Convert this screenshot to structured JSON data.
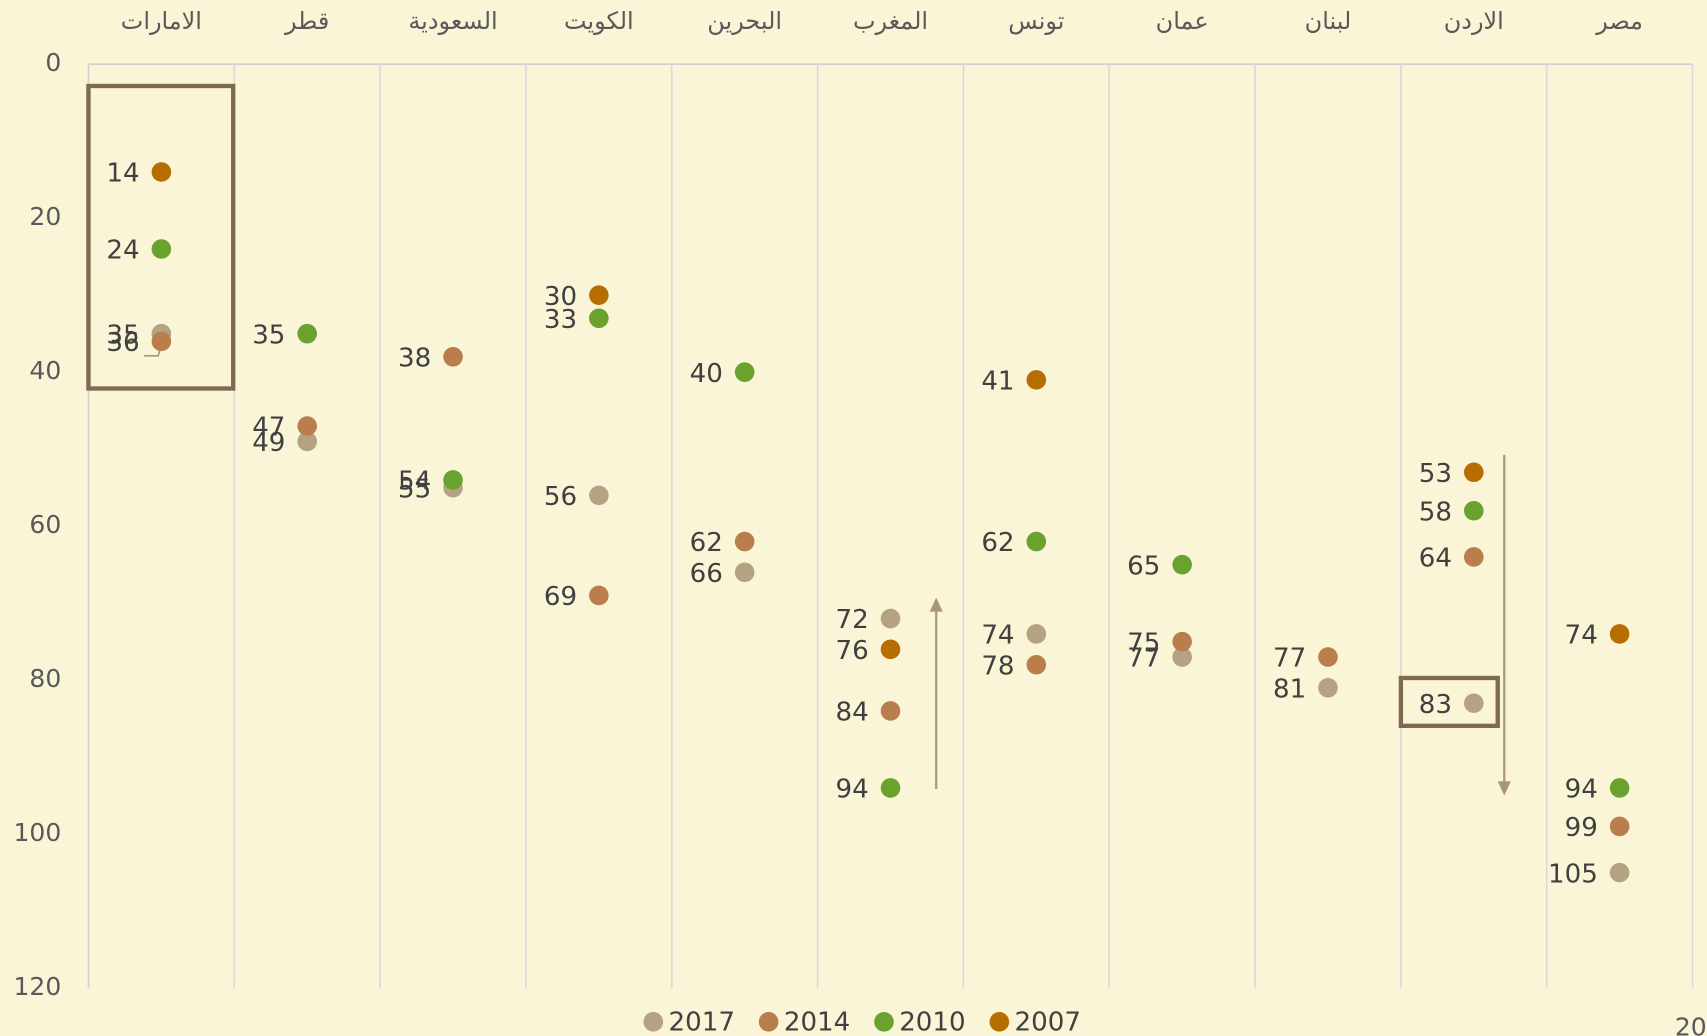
{
  "chart_data": {
    "type": "dot",
    "categories": [
      "الامارات",
      "قطر",
      "السعودية",
      "الكويت",
      "البحرين",
      "المغرب",
      "تونس",
      "عمان",
      "لبنان",
      "الاردن",
      "مصر"
    ],
    "series": [
      {
        "name": "2017",
        "color": "#b4a283",
        "values": [
          35,
          49,
          55,
          56,
          66,
          72,
          74,
          77,
          81,
          83,
          105
        ]
      },
      {
        "name": "2014",
        "color": "#b97e4b",
        "values": [
          36,
          47,
          38,
          69,
          62,
          84,
          78,
          75,
          77,
          64,
          99
        ]
      },
      {
        "name": "2010",
        "color": "#6aa22e",
        "values": [
          24,
          35,
          54,
          33,
          40,
          94,
          62,
          65,
          null,
          58,
          94
        ]
      },
      {
        "name": "2007",
        "color": "#b76e00",
        "values": [
          14,
          null,
          null,
          30,
          null,
          76,
          41,
          null,
          null,
          53,
          74
        ]
      }
    ],
    "ylim": [
      0,
      120
    ],
    "yticks": [
      0,
      20,
      40,
      60,
      80,
      100,
      120
    ],
    "y_reversed": true,
    "legend": "bottom",
    "footer_text": "20"
  }
}
